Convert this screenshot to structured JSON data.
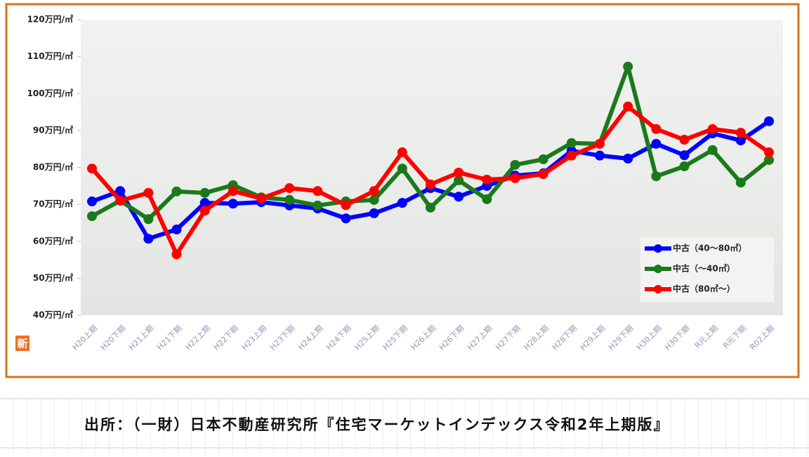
{
  "chart_data": {
    "type": "line",
    "categories": [
      "H20上期",
      "H20下期",
      "H21上期",
      "H21下期",
      "H22上期",
      "H22下期",
      "H23上期",
      "H23下期",
      "H24上期",
      "H24下期",
      "H25上期",
      "H25下期",
      "H26上期",
      "H26下期",
      "H27上期",
      "H27下期",
      "H28上期",
      "H28下期",
      "H29上期",
      "H29下期",
      "H30上期",
      "H30下期",
      "R元上期",
      "R元下期",
      "R02上期"
    ],
    "series": [
      {
        "name": "中古（40～80㎡）",
        "color": "#0000ff",
        "values": [
          70.8,
          73.6,
          60.7,
          63.2,
          70.4,
          70.2,
          70.6,
          69.7,
          68.9,
          66.2,
          67.6,
          70.4,
          74.4,
          72.1,
          75.0,
          77.8,
          78.4,
          84.5,
          83.2,
          82.4,
          86.4,
          83.3,
          89.2,
          87.3,
          92.5
        ]
      },
      {
        "name": "中古（～40㎡）",
        "color": "#1a7a1a",
        "values": [
          66.8,
          71.0,
          66.0,
          73.5,
          73.1,
          75.2,
          71.9,
          71.2,
          69.7,
          70.8,
          71.2,
          79.7,
          69.1,
          76.5,
          71.4,
          80.7,
          82.2,
          86.6,
          86.4,
          107.3,
          77.6,
          80.3,
          84.7,
          75.9,
          82.0
        ]
      },
      {
        "name": "中古（80㎡～）",
        "color": "#ff0000",
        "values": [
          79.7,
          71.0,
          73.1,
          56.5,
          68.3,
          73.6,
          71.6,
          74.4,
          73.6,
          69.8,
          73.6,
          84.1,
          75.4,
          78.6,
          76.7,
          77.1,
          78.2,
          83.2,
          86.4,
          96.5,
          90.4,
          87.5,
          90.4,
          89.4,
          84.1
        ]
      }
    ],
    "ylim": [
      40,
      120
    ],
    "yticks": [
      {
        "value": 40,
        "label": "40万円/㎡"
      },
      {
        "value": 50,
        "label": "50万円/㎡"
      },
      {
        "value": 60,
        "label": "60万円/㎡"
      },
      {
        "value": 70,
        "label": "70万円/㎡"
      },
      {
        "value": 80,
        "label": "80万円/㎡"
      },
      {
        "value": 90,
        "label": "90万円/㎡"
      },
      {
        "value": 100,
        "label": "100万円/㎡"
      },
      {
        "value": 110,
        "label": "110万円/㎡"
      },
      {
        "value": 120,
        "label": "120万円/㎡"
      }
    ],
    "grid": false,
    "legend": "lower right"
  },
  "badge": "新",
  "source": "出所：（一財）日本不動産研究所『住宅マーケットインデックス令和2年上期版』"
}
